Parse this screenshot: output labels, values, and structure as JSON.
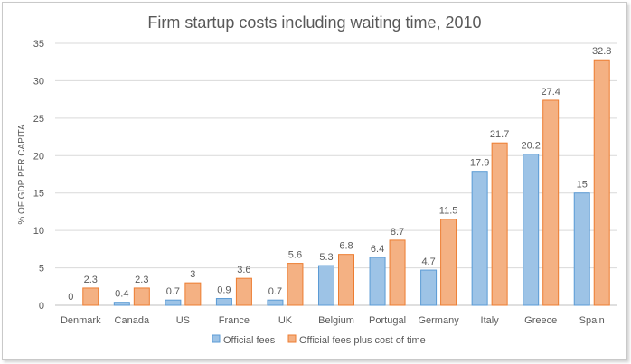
{
  "chart_data": {
    "type": "bar",
    "title": "Firm startup costs including waiting time, 2010",
    "xlabel": "",
    "ylabel": "% OF GDP PER CAPITA",
    "ylim": [
      0,
      35
    ],
    "yticks": [
      0,
      5,
      10,
      15,
      20,
      25,
      30,
      35
    ],
    "grid": true,
    "legend_position": "bottom",
    "categories": [
      "Denmark",
      "Canada",
      "US",
      "France",
      "UK",
      "Belgium",
      "Portugal",
      "Germany",
      "Italy",
      "Greece",
      "Spain"
    ],
    "series": [
      {
        "name": "Official fees",
        "color": "#9dc3e6",
        "stroke": "#5b9bd5",
        "values": [
          0,
          0.4,
          0.7,
          0.9,
          0.7,
          5.3,
          6.4,
          4.7,
          17.9,
          20.2,
          15
        ]
      },
      {
        "name": "Official fees plus cost of time",
        "color": "#f4b183",
        "stroke": "#ed7d31",
        "values": [
          2.3,
          2.3,
          3,
          3.6,
          5.6,
          6.8,
          8.7,
          11.5,
          21.7,
          27.4,
          32.8
        ]
      }
    ]
  }
}
